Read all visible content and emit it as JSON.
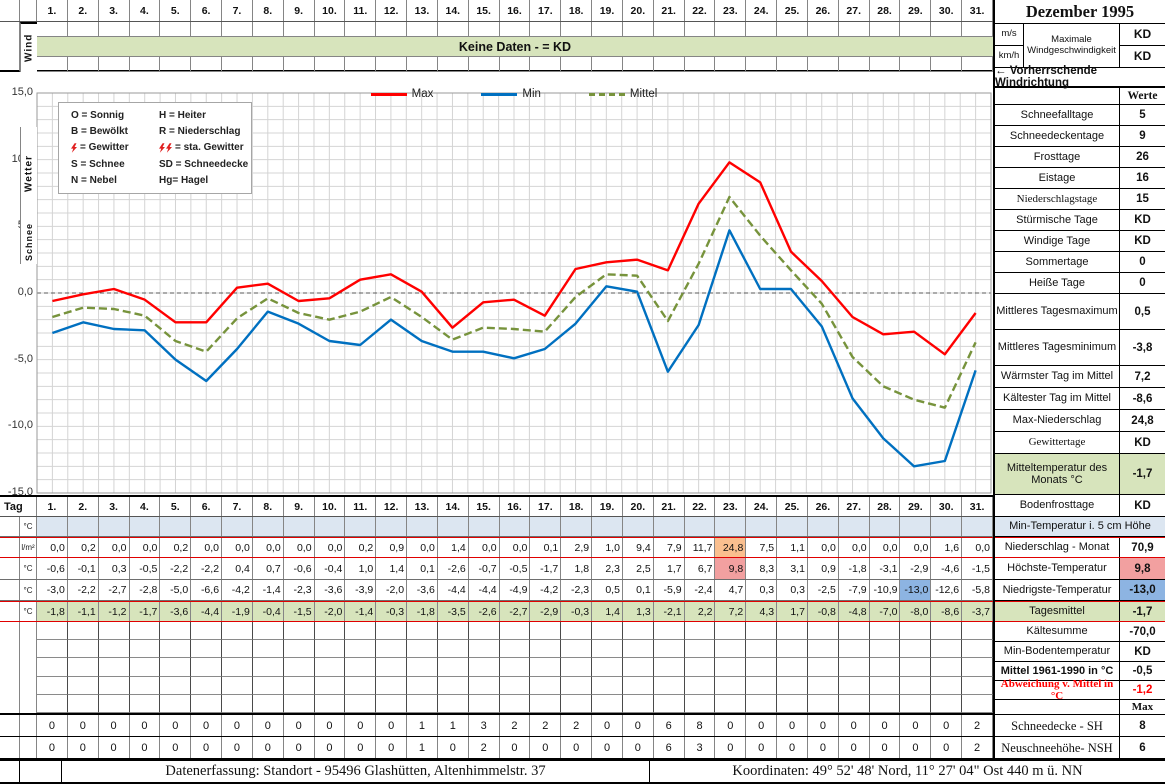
{
  "title": "Dezember 1995",
  "days": [
    "1.",
    "2.",
    "3.",
    "4.",
    "5.",
    "6.",
    "7.",
    "8.",
    "9.",
    "10.",
    "11.",
    "12.",
    "13.",
    "14.",
    "15.",
    "16.",
    "17.",
    "18.",
    "19.",
    "20.",
    "21.",
    "22.",
    "23.",
    "24.",
    "25.",
    "26.",
    "27.",
    "28.",
    "29.",
    "30.",
    "31."
  ],
  "wind": {
    "label": "Wind",
    "banner": "Keine Daten -  = KD",
    "unit_ms": "m/s",
    "unit_kmh": "km/h",
    "max_wind_label": "Maximale Windgeschwindigkeit",
    "max_wind_ms": "KD",
    "max_wind_kmh": "KD",
    "direction_label": "←  Vorherrschende Windrichtung"
  },
  "legend_codes": {
    "left": [
      {
        "text": "O = Sonnig"
      },
      {
        "text": "B = Bewölkt"
      },
      {
        "bolts": 1,
        "text": "= Gewitter"
      },
      {
        "text": "S = Schnee"
      },
      {
        "text": "N = Nebel"
      }
    ],
    "right": [
      {
        "text": "H = Heiter"
      },
      {
        "text": "R = Niederschlag"
      },
      {
        "bolts": 2,
        "text": "= sta. Gewitter"
      },
      {
        "text": "SD = Schneedecke"
      },
      {
        "text": "Hg= Hagel"
      }
    ]
  },
  "chart_data": {
    "type": "line",
    "title": "",
    "xlabel": "Tag",
    "ylabel": "°C",
    "x": [
      1,
      2,
      3,
      4,
      5,
      6,
      7,
      8,
      9,
      10,
      11,
      12,
      13,
      14,
      15,
      16,
      17,
      18,
      19,
      20,
      21,
      22,
      23,
      24,
      25,
      26,
      27,
      28,
      29,
      30,
      31
    ],
    "ylim": [
      -15,
      15
    ],
    "ytick_values": [
      15,
      10,
      5,
      0,
      -5,
      -10,
      -15
    ],
    "ytick_labels": [
      "15,0",
      "10,0",
      "5,0",
      "0,0",
      "-5,0",
      "-10,0",
      "-15,0"
    ],
    "grid": true,
    "legend_position": "top-center",
    "series": [
      {
        "name": "Max",
        "color": "#ff0000",
        "dash": false,
        "values": [
          -0.6,
          -0.1,
          0.3,
          -0.5,
          -2.2,
          -2.2,
          0.4,
          0.7,
          -0.6,
          -0.4,
          1.0,
          1.4,
          0.1,
          -2.6,
          -0.7,
          -0.5,
          -1.7,
          1.8,
          2.3,
          2.5,
          1.7,
          6.7,
          9.8,
          8.3,
          3.1,
          0.9,
          -1.8,
          -3.1,
          -2.9,
          -4.6,
          -1.5
        ]
      },
      {
        "name": "Min",
        "color": "#0070c0",
        "dash": false,
        "values": [
          -3.0,
          -2.2,
          -2.7,
          -2.8,
          -5.0,
          -6.6,
          -4.2,
          -1.4,
          -2.3,
          -3.6,
          -3.9,
          -2.0,
          -3.6,
          -4.4,
          -4.4,
          -4.9,
          -4.2,
          -2.3,
          0.5,
          0.1,
          -5.9,
          -2.4,
          4.7,
          0.3,
          0.3,
          -2.5,
          -7.9,
          -10.9,
          -13.0,
          -12.6,
          -5.8
        ]
      },
      {
        "name": "Mittel",
        "color": "#77933c",
        "dash": true,
        "values": [
          -1.8,
          -1.1,
          -1.2,
          -1.7,
          -3.6,
          -4.4,
          -1.9,
          -0.4,
          -1.5,
          -2.0,
          -1.4,
          -0.3,
          -1.8,
          -3.5,
          -2.6,
          -2.7,
          -2.9,
          -0.3,
          1.4,
          1.3,
          -2.1,
          2.2,
          7.2,
          4.3,
          1.7,
          -0.8,
          -4.8,
          -7.0,
          -8.0,
          -8.6,
          -3.7
        ]
      }
    ]
  },
  "table": {
    "tag_label": "Tag",
    "rows": [
      {
        "key": "min5cm",
        "unit": "°C",
        "bg": "#dce6f1",
        "redBorder": false,
        "values": [
          "",
          "",
          "",
          "",
          "",
          "",
          "",
          "",
          "",
          "",
          "",
          "",
          "",
          "",
          "",
          "",
          "",
          "",
          "",
          "",
          "",
          "",
          "",
          "",
          "",
          "",
          "",
          "",
          "",
          "",
          ""
        ]
      },
      {
        "key": "niederschlag",
        "unit": "l/m²",
        "bg": "",
        "redBorder": true,
        "values": [
          "0,0",
          "0,2",
          "0,0",
          "0,0",
          "0,2",
          "0,0",
          "0,0",
          "0,0",
          "0,0",
          "0,0",
          "0,2",
          "0,9",
          "0,0",
          "1,4",
          "0,0",
          "0,0",
          "0,1",
          "2,9",
          "1,0",
          "9,4",
          "7,9",
          "11,7",
          "24,8",
          "7,5",
          "1,1",
          "0,0",
          "0,0",
          "0,0",
          "0,0",
          "1,6",
          "0,0"
        ]
      },
      {
        "key": "hoechste",
        "unit": "°C",
        "bg": "",
        "redBorder": false,
        "values": [
          "-0,6",
          "-0,1",
          "0,3",
          "-0,5",
          "-2,2",
          "-2,2",
          "0,4",
          "0,7",
          "-0,6",
          "-0,4",
          "1,0",
          "1,4",
          "0,1",
          "-2,6",
          "-0,7",
          "-0,5",
          "-1,7",
          "1,8",
          "2,3",
          "2,5",
          "1,7",
          "6,7",
          "9,8",
          "8,3",
          "3,1",
          "0,9",
          "-1,8",
          "-3,1",
          "-2,9",
          "-4,6",
          "-1,5"
        ]
      },
      {
        "key": "niedrigste",
        "unit": "°C",
        "bg": "",
        "redBorder": false,
        "values": [
          "-3,0",
          "-2,2",
          "-2,7",
          "-2,8",
          "-5,0",
          "-6,6",
          "-4,2",
          "-1,4",
          "-2,3",
          "-3,6",
          "-3,9",
          "-2,0",
          "-3,6",
          "-4,4",
          "-4,4",
          "-4,9",
          "-4,2",
          "-2,3",
          "0,5",
          "0,1",
          "-5,9",
          "-2,4",
          "4,7",
          "0,3",
          "0,3",
          "-2,5",
          "-7,9",
          "-10,9",
          "-13,0",
          "-12,6",
          "-5,8"
        ]
      },
      {
        "key": "tagesmittel",
        "unit": "°C",
        "bg": "#d7e4bc",
        "redBorder": true,
        "values": [
          "-1,8",
          "-1,1",
          "-1,2",
          "-1,7",
          "-3,6",
          "-4,4",
          "-1,9",
          "-0,4",
          "-1,5",
          "-2,0",
          "-1,4",
          "-0,3",
          "-1,8",
          "-3,5",
          "-2,6",
          "-2,7",
          "-2,9",
          "-0,3",
          "1,4",
          "1,3",
          "-2,1",
          "2,2",
          "7,2",
          "4,3",
          "1,7",
          "-0,8",
          "-4,8",
          "-7,0",
          "-8,0",
          "-8,6",
          "-3,7"
        ]
      }
    ],
    "highlights": [
      {
        "row": 1,
        "col": 22,
        "color": "#fabf8f"
      },
      {
        "row": 2,
        "col": 22,
        "color": "#f2a0a0"
      },
      {
        "row": 3,
        "col": 28,
        "color": "#8db4e2"
      }
    ]
  },
  "wetter_label": "Wetter",
  "schnee_label": "Schnee",
  "schnee_rows": [
    {
      "key": "schneedecke",
      "values": [
        "0",
        "0",
        "0",
        "0",
        "0",
        "0",
        "0",
        "0",
        "0",
        "0",
        "0",
        "0",
        "1",
        "1",
        "3",
        "2",
        "2",
        "2",
        "0",
        "0",
        "6",
        "8",
        "0",
        "0",
        "0",
        "0",
        "0",
        "0",
        "0",
        "0",
        "2"
      ]
    },
    {
      "key": "neuschnee",
      "values": [
        "0",
        "0",
        "0",
        "0",
        "0",
        "0",
        "0",
        "0",
        "0",
        "0",
        "0",
        "0",
        "1",
        "0",
        "2",
        "0",
        "0",
        "0",
        "0",
        "0",
        "6",
        "3",
        "0",
        "0",
        "0",
        "0",
        "0",
        "0",
        "0",
        "0",
        "2"
      ]
    }
  ],
  "sidebar": {
    "rows": [
      {
        "label": "",
        "value": "Werte",
        "valueSerif": true
      },
      {
        "label": "Schneefalltage",
        "value": "5"
      },
      {
        "label": "Schneedeckentage",
        "value": "9"
      },
      {
        "label": "Frosttage",
        "value": "26"
      },
      {
        "label": "Eistage",
        "value": "16"
      },
      {
        "label": "Niederschlagstage",
        "value": "15",
        "labelSerif": true
      },
      {
        "label": "Stürmische Tage",
        "value": "KD"
      },
      {
        "label": "Windige Tage",
        "value": "KD"
      },
      {
        "label": "Sommertage",
        "value": "0"
      },
      {
        "label": "Heiße Tage",
        "value": "0"
      },
      {
        "label": "Mittleres Tagesmaximum",
        "value": "0,5"
      },
      {
        "label": "Mittleres Tagesminimum",
        "value": "-3,8"
      },
      {
        "label": "Wärmster Tag im Mittel",
        "value": "7,2"
      },
      {
        "label": "Kältester Tag im Mittel",
        "value": "-8,6"
      },
      {
        "label": "Max-Niederschlag",
        "value": "24,8"
      },
      {
        "label": "Gewittertage",
        "value": "KD",
        "labelSerif": true
      },
      {
        "label": "Mitteltemperatur des Monats °C",
        "value": "-1,7",
        "bg": "#d7e4bc"
      },
      {
        "label": "Bodenfrosttage",
        "value": "KD"
      },
      {
        "label": "Min-Temperatur i. 5 cm Höhe",
        "span": true,
        "bg": "#dce6f1"
      },
      {
        "label": "Niederschlag - Monat",
        "value": "70,9",
        "redBorder": true
      },
      {
        "label": "Höchste-Temperatur",
        "value": "9,8",
        "valueBg": "#f2a0a0"
      },
      {
        "label": "Niedrigste-Temperatur",
        "value": "-13,0",
        "valueBg": "#8db4e2"
      },
      {
        "label": "Tagesmittel",
        "value": "-1,7",
        "bg": "#d7e4bc",
        "redBorder": true
      },
      {
        "label": "Kältesumme",
        "value": "-70,0"
      },
      {
        "label": "Min-Bodentemperatur",
        "value": "KD"
      },
      {
        "label": "Mittel 1961-1990 in °C",
        "value": "-0,5",
        "boldLabel": true
      },
      {
        "label": "Abweichung v. Mittel in °C",
        "value": "-1,2",
        "red": true,
        "boldLabel": true,
        "labelSerif": true
      },
      {
        "label": "",
        "value": "Max",
        "valueSerif": true,
        "smallValue": true
      },
      {
        "label": "Schneedecke -   SH",
        "value": "8",
        "labelSerif": true,
        "bigLabel": true
      },
      {
        "label": "Neuschneehöhe- NSH",
        "value": "6",
        "labelSerif": true,
        "bigLabel": true
      }
    ]
  },
  "footer": {
    "left": "Datenerfassung:  Standort -  95496  Glashütten, Altenhimmelstr. 37",
    "right": "Koordinaten:  49° 52' 48' Nord,   11° 27' 04\" Ost  440 m ü. NN"
  }
}
